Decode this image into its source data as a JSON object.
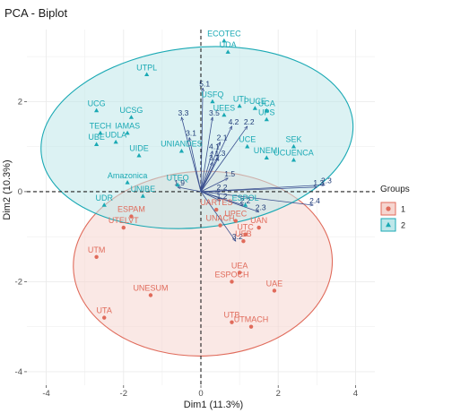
{
  "chart_data": {
    "type": "scatter",
    "title": "PCA - Biplot",
    "xlabel": "Dim1 (11.3%)",
    "ylabel": "Dim2 (10.3%)",
    "xlim": [
      -4.5,
      4.5
    ],
    "ylim": [
      -4.3,
      3.6
    ],
    "xticks": [
      -4,
      -2,
      0,
      2,
      4
    ],
    "yticks": [
      -4,
      -2,
      0,
      2
    ],
    "grid": true,
    "legend": {
      "title": "Groups",
      "position": "right",
      "entries": [
        "1",
        "2"
      ]
    },
    "series": [
      {
        "name": "1",
        "color": "#e06b5b",
        "fill": "#f6d6d0",
        "marker": "circle",
        "points": [
          {
            "label": "UTA",
            "x": -2.5,
            "y": -2.8
          },
          {
            "label": "UTM",
            "x": -2.7,
            "y": -1.45
          },
          {
            "label": "UNESUM",
            "x": -1.3,
            "y": -2.3
          },
          {
            "label": "UTELVT",
            "x": -2.0,
            "y": -0.8
          },
          {
            "label": "ESPAM",
            "x": -1.8,
            "y": -0.55
          },
          {
            "label": "UARTES",
            "x": 0.4,
            "y": -0.4
          },
          {
            "label": "ESPOCH",
            "x": 0.8,
            "y": -2.0
          },
          {
            "label": "UAE",
            "x": 1.9,
            "y": -2.2
          },
          {
            "label": "UEA",
            "x": 1.0,
            "y": -1.8
          },
          {
            "label": "UTMACH",
            "x": 1.3,
            "y": -3.0
          },
          {
            "label": "UTB",
            "x": 0.8,
            "y": -2.9
          },
          {
            "label": "UAN",
            "x": 1.5,
            "y": -0.8
          },
          {
            "label": "UPEC",
            "x": 0.9,
            "y": -0.65
          },
          {
            "label": "UNACH",
            "x": 0.5,
            "y": -0.75
          },
          {
            "label": "UEB",
            "x": 1.1,
            "y": -1.1
          },
          {
            "label": "UTC",
            "x": 1.15,
            "y": -0.95
          }
        ]
      },
      {
        "name": "2",
        "color": "#1aa9b4",
        "fill": "#bfe7ea",
        "marker": "triangle",
        "points": [
          {
            "label": "ECOTEC",
            "x": 0.6,
            "y": 3.35
          },
          {
            "label": "UDA",
            "x": 0.7,
            "y": 3.1
          },
          {
            "label": "UTPL",
            "x": -1.4,
            "y": 2.6
          },
          {
            "label": "UCG",
            "x": -2.7,
            "y": 1.8
          },
          {
            "label": "UCSG",
            "x": -1.8,
            "y": 1.65
          },
          {
            "label": "TECH",
            "x": -2.6,
            "y": 1.3
          },
          {
            "label": "UBE",
            "x": -2.7,
            "y": 1.05
          },
          {
            "label": "UDLA",
            "x": -2.2,
            "y": 1.1
          },
          {
            "label": "IAMAS",
            "x": -1.9,
            "y": 1.3
          },
          {
            "label": "UIDE",
            "x": -1.6,
            "y": 0.8
          },
          {
            "label": "Amazonica",
            "x": -1.9,
            "y": 0.2
          },
          {
            "label": "UTEQ",
            "x": -0.6,
            "y": 0.15
          },
          {
            "label": "UNIBE",
            "x": -1.5,
            "y": -0.1
          },
          {
            "label": "UDR",
            "x": -2.5,
            "y": -0.3
          },
          {
            "label": "UNIANDES",
            "x": -0.5,
            "y": 0.9
          },
          {
            "label": "USFQ",
            "x": 0.3,
            "y": 2.0
          },
          {
            "label": "UTI",
            "x": 1.0,
            "y": 1.9
          },
          {
            "label": "UEES",
            "x": 0.6,
            "y": 1.7
          },
          {
            "label": "PUCE",
            "x": 1.4,
            "y": 1.85
          },
          {
            "label": "UCA",
            "x": 1.7,
            "y": 1.8
          },
          {
            "label": "UPS",
            "x": 1.7,
            "y": 1.6
          },
          {
            "label": "SEK",
            "x": 2.4,
            "y": 1.0
          },
          {
            "label": "UCUENCA",
            "x": 2.4,
            "y": 0.7
          },
          {
            "label": "UNEMI",
            "x": 1.7,
            "y": 0.75
          },
          {
            "label": "ESPOL",
            "x": 1.15,
            "y": -0.3
          },
          {
            "label": "UCE",
            "x": 1.2,
            "y": 1.0
          }
        ]
      }
    ],
    "variables": [
      {
        "label": "5.1",
        "x": 0.05,
        "y": 2.3
      },
      {
        "label": "3.3",
        "x": -0.5,
        "y": 1.65
      },
      {
        "label": "3.5",
        "x": 0.3,
        "y": 1.65
      },
      {
        "label": "4.2",
        "x": 0.8,
        "y": 1.45
      },
      {
        "label": "2.2",
        "x": 1.2,
        "y": 1.45
      },
      {
        "label": "3.1",
        "x": -0.3,
        "y": 1.2
      },
      {
        "label": "2.1",
        "x": 0.5,
        "y": 1.1
      },
      {
        "label": "1.5",
        "x": 0.7,
        "y": 0.3
      },
      {
        "label": "2.2",
        "x": 0.5,
        "y": 0.0
      },
      {
        "label": "1.2",
        "x": 0.5,
        "y": -0.2
      },
      {
        "label": "2.3",
        "x": 1.5,
        "y": -0.45
      },
      {
        "label": "2.2",
        "x": 1.1,
        "y": -0.3
      },
      {
        "label": "2.3",
        "x": 3.2,
        "y": 0.15
      },
      {
        "label": "1.3",
        "x": 3.0,
        "y": 0.1
      },
      {
        "label": "1.9",
        "x": -0.6,
        "y": 0.1
      },
      {
        "label": "3.2",
        "x": 0.3,
        "y": 0.65
      },
      {
        "label": "3.2",
        "x": 0.9,
        "y": -1.1
      },
      {
        "label": "1.3",
        "x": 0.45,
        "y": 0.75
      },
      {
        "label": "2.4",
        "x": 2.9,
        "y": -0.3
      },
      {
        "label": "4.1",
        "x": 0.3,
        "y": 0.9
      }
    ],
    "ellipses": [
      {
        "group": "1",
        "cx": 0.05,
        "cy": -1.6,
        "rx": 3.35,
        "ry": 2.05,
        "angle_deg": -2
      },
      {
        "group": "2",
        "cx": -0.1,
        "cy": 1.2,
        "rx": 4.05,
        "ry": 2.0,
        "angle_deg": -6
      }
    ]
  }
}
